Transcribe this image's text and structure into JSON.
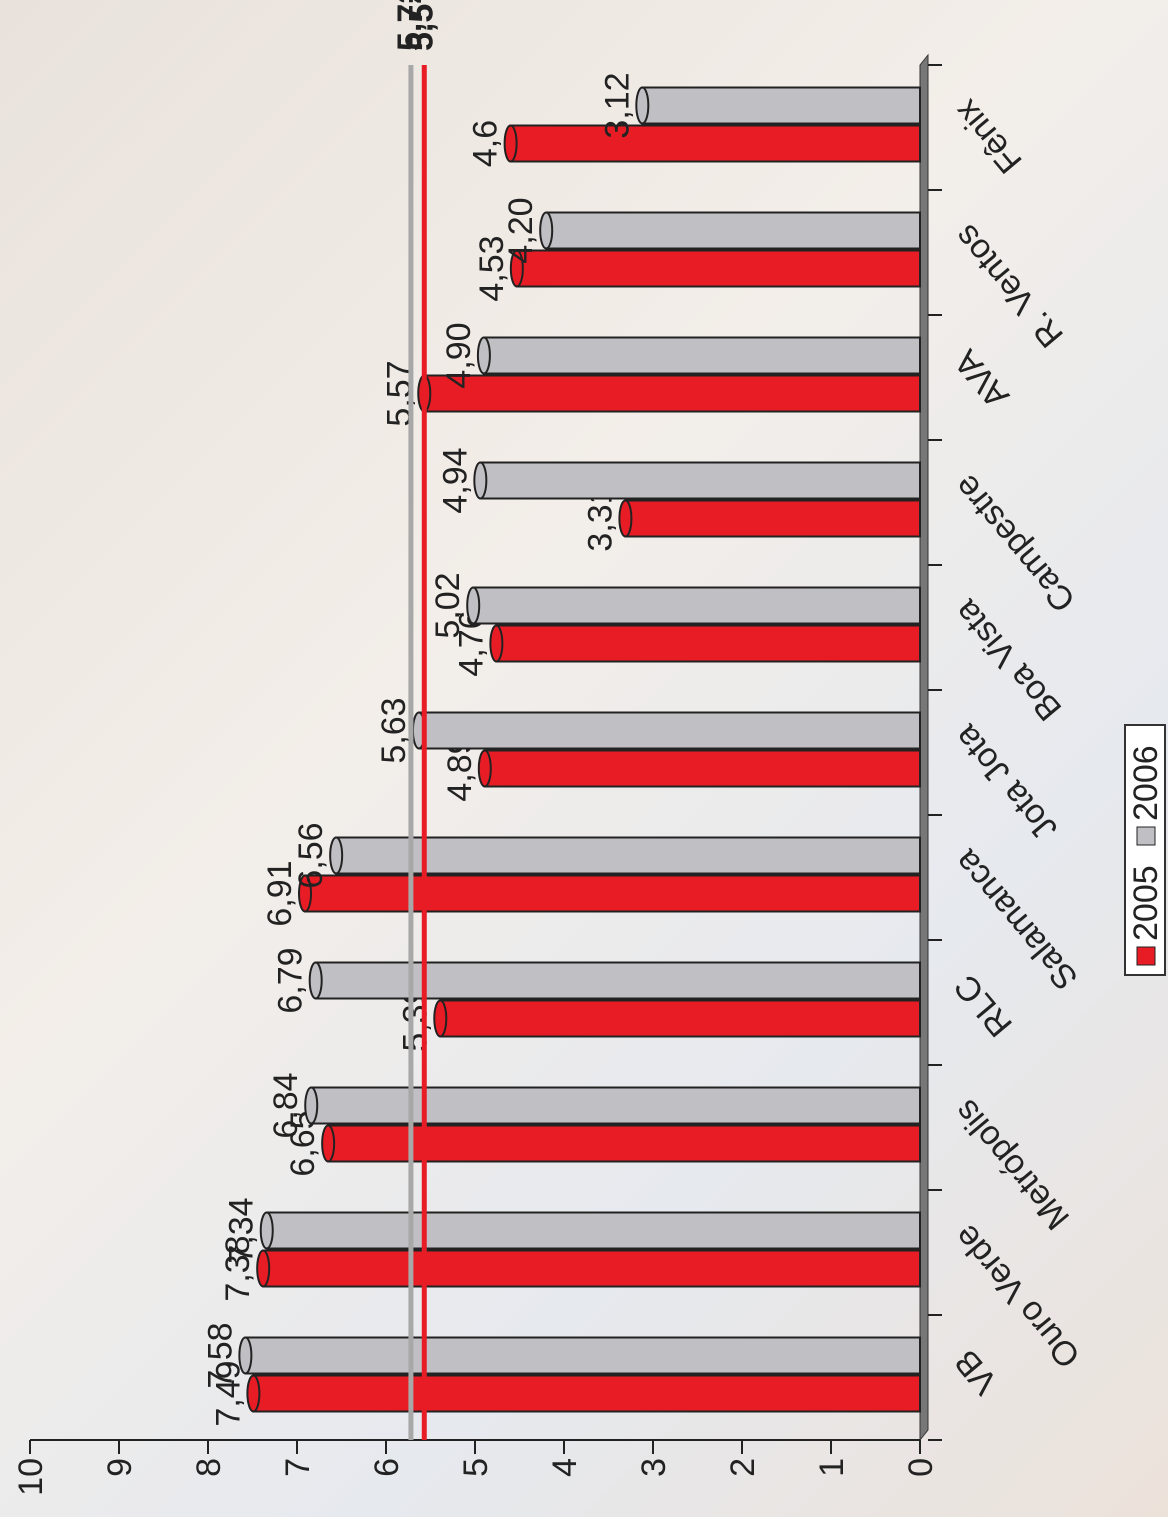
{
  "chart_data": {
    "type": "bar",
    "categories": [
      "VB",
      "Ouro Verde",
      "Metrópolis",
      "RLC",
      "Salamanca",
      "Jota Jota",
      "Boa Vista",
      "Campestre",
      "AVA",
      "R. Ventos",
      "Fênix"
    ],
    "series": [
      {
        "name": "2005",
        "color": "#e81c24",
        "values": [
          7.49,
          7.38,
          6.65,
          5.39,
          6.91,
          4.89,
          4.76,
          3.31,
          5.57,
          4.53,
          4.6
        ],
        "value_labels": [
          "7,49",
          "7,38",
          "6,65",
          "5,39",
          "6,91",
          "4,89",
          "4,76",
          "3,31",
          "5,57",
          "4,53",
          "4,6"
        ]
      },
      {
        "name": "2006",
        "color": "#c0c0c4",
        "values": [
          7.58,
          7.34,
          6.84,
          6.79,
          6.56,
          5.63,
          5.02,
          4.94,
          4.9,
          4.2,
          3.12
        ],
        "value_labels": [
          "7,58",
          "7,34",
          "6,84",
          "6,79",
          "6,56",
          "5,63",
          "5,02",
          "4,94",
          "4,90",
          "4,20",
          "3,12"
        ]
      }
    ],
    "reference_lines": [
      {
        "value": 5.72,
        "label": "5,72",
        "color": "#a8a8a8"
      },
      {
        "value": 5.57,
        "label": "5,57",
        "color": "#e81c24"
      }
    ],
    "ylim": [
      0,
      10
    ],
    "yticks": [
      0,
      1,
      2,
      3,
      4,
      5,
      6,
      7,
      8,
      9,
      10
    ]
  }
}
